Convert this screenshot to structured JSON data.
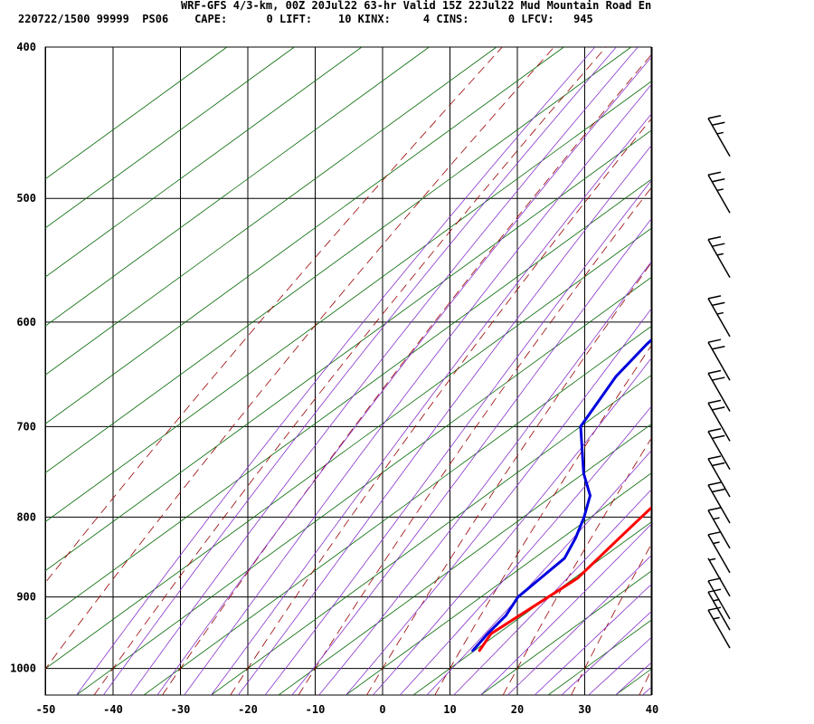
{
  "header": {
    "line1": "WRF-GFS 4/3-km, 00Z 20Jul22 63-hr Valid 15Z 22Jul22 Mud Mountain Road En",
    "line2": "220722/1500 99999  PS06    CAPE:      0 LIFT:    10 KINX:     4 CINS:      0 LFCV:   945"
  },
  "colors": {
    "temperature": "#ff0000",
    "dewpoint": "#0000dd",
    "dry_adiabat": "#990000",
    "moist_adiabat": "#8833cc",
    "isotherm": "#006600",
    "grid": "#000000"
  },
  "chart_data": {
    "type": "skew-t",
    "x_axis": {
      "range": [
        -50,
        40
      ],
      "ticks": [
        -50,
        -40,
        -30,
        -20,
        -10,
        0,
        10,
        20,
        30,
        40
      ]
    },
    "y_axis": {
      "scale": "log",
      "range": [
        1040,
        400
      ],
      "ticks": [
        400,
        500,
        600,
        700,
        800,
        900,
        1000
      ]
    },
    "grid": true,
    "series": [
      {
        "key": "temperature",
        "points": [
          [
            975,
            10.8
          ],
          [
            950,
            9.0
          ],
          [
            925,
            9.5
          ],
          [
            900,
            10.0
          ],
          [
            875,
            10.5
          ],
          [
            850,
            9.5
          ],
          [
            825,
            8.5
          ],
          [
            800,
            7.5
          ],
          [
            750,
            5.5
          ],
          [
            700,
            4.0
          ],
          [
            650,
            1.0
          ],
          [
            600,
            -3.0
          ],
          [
            550,
            -7.5
          ],
          [
            500,
            -12.5
          ],
          [
            460,
            -17.5
          ]
        ]
      },
      {
        "key": "dewpoint",
        "points": [
          [
            975,
            9.8
          ],
          [
            950,
            8.5
          ],
          [
            925,
            7.5
          ],
          [
            900,
            5.5
          ],
          [
            875,
            5.0
          ],
          [
            850,
            4.5
          ],
          [
            825,
            2.0
          ],
          [
            800,
            -1.0
          ],
          [
            775,
            -4.5
          ],
          [
            750,
            -10.0
          ],
          [
            700,
            -20.0
          ],
          [
            650,
            -25.0
          ],
          [
            620,
            -27.0
          ],
          [
            600,
            -28.0
          ],
          [
            570,
            -28.5
          ],
          [
            540,
            -29.0
          ],
          [
            510,
            -30.5
          ],
          [
            485,
            -32.5
          ],
          [
            460,
            -34.5
          ]
        ]
      }
    ],
    "wind_barbs": [
      {
        "p": 460,
        "knots": 25
      },
      {
        "p": 500,
        "knots": 25
      },
      {
        "p": 550,
        "knots": 25
      },
      {
        "p": 600,
        "knots": 25
      },
      {
        "p": 640,
        "knots": 20
      },
      {
        "p": 670,
        "knots": 20
      },
      {
        "p": 700,
        "knots": 20
      },
      {
        "p": 730,
        "knots": 20
      },
      {
        "p": 760,
        "knots": 20
      },
      {
        "p": 790,
        "knots": 20
      },
      {
        "p": 820,
        "knots": 15
      },
      {
        "p": 850,
        "knots": 15
      },
      {
        "p": 880,
        "knots": 5
      },
      {
        "p": 910,
        "knots": 10
      },
      {
        "p": 925,
        "knots": 15
      },
      {
        "p": 950,
        "knots": 15
      }
    ]
  }
}
